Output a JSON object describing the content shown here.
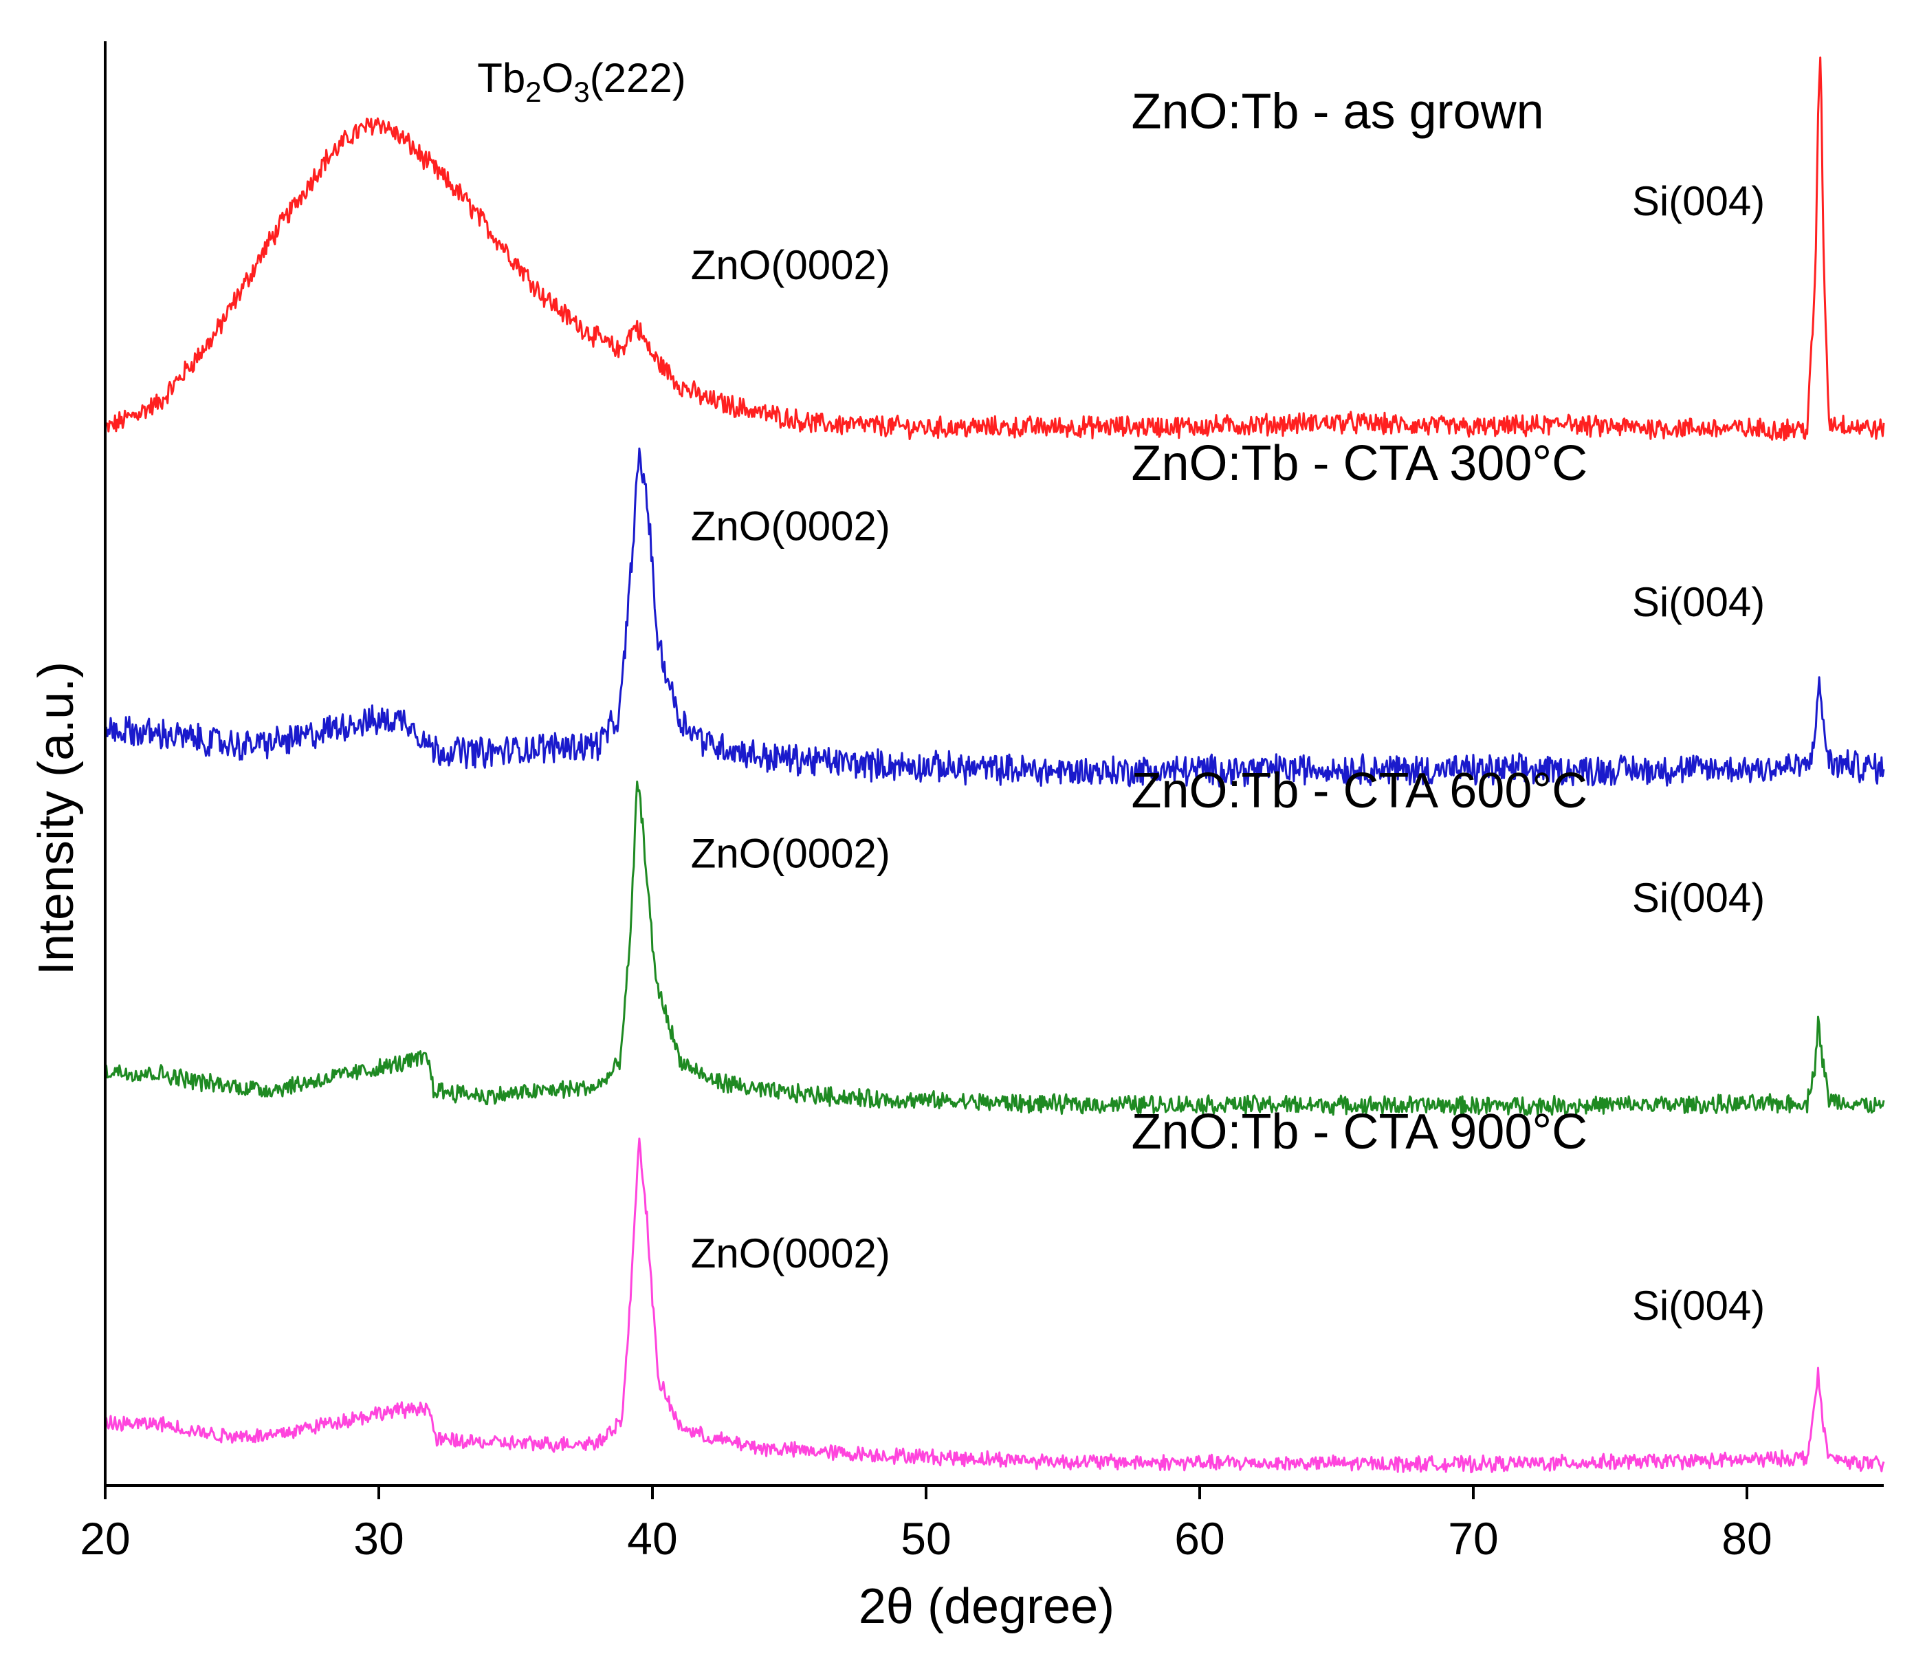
{
  "chart_data": {
    "type": "line",
    "xlabel": "2θ (degree)",
    "ylabel": "Intensity (a.u.)",
    "xlim": [
      20,
      85
    ],
    "xticks": [
      20,
      30,
      40,
      50,
      60,
      70,
      80
    ],
    "tick_labels": [
      "20",
      "30",
      "40",
      "50",
      "60",
      "70",
      "80"
    ],
    "ylim": [
      0,
      108
    ],
    "yticks_visible": false,
    "grid": false,
    "legend": "none (direct labels)",
    "series": [
      {
        "name": "ZnO:Tb - as grown",
        "color": "#ff2020",
        "noise": 0.7,
        "points": [
          [
            20,
            79
          ],
          [
            22,
            81
          ],
          [
            24,
            86
          ],
          [
            26,
            93
          ],
          [
            28,
            99
          ],
          [
            29,
            101
          ],
          [
            30,
            102
          ],
          [
            31,
            100.5
          ],
          [
            32,
            98.5
          ],
          [
            33,
            96.5
          ],
          [
            34,
            94
          ],
          [
            35,
            91.5
          ],
          [
            36,
            89
          ],
          [
            37,
            87.2
          ],
          [
            38,
            85.8
          ],
          [
            38.8,
            84.8
          ],
          [
            39.4,
            86.8
          ],
          [
            40,
            84.5
          ],
          [
            41,
            82.3
          ],
          [
            42,
            81.2
          ],
          [
            44,
            80.2
          ],
          [
            46,
            79.4
          ],
          [
            50,
            79.1
          ],
          [
            60,
            79.2
          ],
          [
            65,
            79.5
          ],
          [
            70,
            79.1
          ],
          [
            73.3,
            79.3
          ],
          [
            73.5,
            80.1
          ],
          [
            73.7,
            79.2
          ],
          [
            80,
            79
          ],
          [
            82.2,
            79
          ],
          [
            82.5,
            90
          ],
          [
            82.6,
            103
          ],
          [
            82.7,
            107
          ],
          [
            82.8,
            92
          ],
          [
            83,
            79.5
          ],
          [
            85,
            78.9
          ]
        ]
      },
      {
        "name": "ZnO:Tb - CTA 300°C",
        "color": "#1a1acc",
        "noise": 1.0,
        "points": [
          [
            20,
            56.5
          ],
          [
            22,
            56.2
          ],
          [
            25,
            55.3
          ],
          [
            27,
            55.8
          ],
          [
            29,
            57
          ],
          [
            31,
            57.3
          ],
          [
            32,
            55
          ],
          [
            34,
            54.8
          ],
          [
            36,
            55.2
          ],
          [
            38,
            55.4
          ],
          [
            38.8,
            57.5
          ],
          [
            39.2,
            68
          ],
          [
            39.5,
            77
          ],
          [
            39.8,
            74
          ],
          [
            40.2,
            63
          ],
          [
            41,
            57.3
          ],
          [
            42,
            55.5
          ],
          [
            44,
            54.5
          ],
          [
            48,
            53.9
          ],
          [
            55,
            53.4
          ],
          [
            60,
            53.5
          ],
          [
            65,
            53.6
          ],
          [
            70,
            53.5
          ],
          [
            75,
            53.5
          ],
          [
            80,
            53.6
          ],
          [
            82.3,
            53.8
          ],
          [
            82.5,
            57
          ],
          [
            82.65,
            59.5
          ],
          [
            82.8,
            57
          ],
          [
            83,
            54
          ],
          [
            85,
            53.6
          ]
        ]
      },
      {
        "name": "ZnO:Tb - CTA 600°C",
        "color": "#1e8a22",
        "noise": 0.6,
        "points": [
          [
            20,
            31
          ],
          [
            22,
            30.8
          ],
          [
            24,
            30
          ],
          [
            26,
            29.6
          ],
          [
            28,
            30.4
          ],
          [
            30,
            31.2
          ],
          [
            31.8,
            32
          ],
          [
            32,
            29.6
          ],
          [
            34,
            29.1
          ],
          [
            36,
            29.5
          ],
          [
            38,
            29.8
          ],
          [
            38.8,
            31.5
          ],
          [
            39.2,
            41
          ],
          [
            39.45,
            53
          ],
          [
            39.7,
            48
          ],
          [
            40.1,
            38
          ],
          [
            41,
            31.8
          ],
          [
            42,
            30.4
          ],
          [
            44,
            29.5
          ],
          [
            48,
            28.9
          ],
          [
            55,
            28.5
          ],
          [
            60,
            28.5
          ],
          [
            70,
            28.4
          ],
          [
            80,
            28.5
          ],
          [
            82.2,
            28.6
          ],
          [
            82.5,
            31.5
          ],
          [
            82.6,
            35
          ],
          [
            82.75,
            32
          ],
          [
            83,
            28.8
          ],
          [
            85,
            28.3
          ]
        ]
      },
      {
        "name": "ZnO:Tb - CTA 900°C",
        "color": "#ff44dd",
        "noise": 0.5,
        "points": [
          [
            20,
            4.6
          ],
          [
            22,
            4.6
          ],
          [
            24,
            3.8
          ],
          [
            26,
            3.7
          ],
          [
            28,
            4.6
          ],
          [
            30,
            5.4
          ],
          [
            31.8,
            5.9
          ],
          [
            32.1,
            3.4
          ],
          [
            34,
            3.2
          ],
          [
            36,
            3.1
          ],
          [
            38,
            3.2
          ],
          [
            38.9,
            5
          ],
          [
            39.2,
            14
          ],
          [
            39.5,
            26
          ],
          [
            39.8,
            20
          ],
          [
            40.2,
            8
          ],
          [
            41,
            4.4
          ],
          [
            42,
            3.6
          ],
          [
            44,
            2.8
          ],
          [
            48,
            2.3
          ],
          [
            55,
            1.8
          ],
          [
            60,
            1.7
          ],
          [
            70,
            1.6
          ],
          [
            80,
            1.9
          ],
          [
            82.2,
            2.1
          ],
          [
            82.45,
            5.5
          ],
          [
            82.6,
            8.5
          ],
          [
            82.75,
            5
          ],
          [
            83,
            2
          ],
          [
            85,
            1.5
          ]
        ]
      }
    ],
    "annotations": [
      {
        "text": "ZnO:Tb - as grown",
        "x": 57.5,
        "y": 101.5,
        "kind": "title"
      },
      {
        "text": "ZnO:Tb - CTA 300°C",
        "x": 57.5,
        "y": 75.2,
        "kind": "title"
      },
      {
        "text": "ZnO:Tb - CTA 600°C",
        "x": 57.5,
        "y": 50.7,
        "kind": "title"
      },
      {
        "text": "ZnO:Tb - CTA 900°C",
        "x": 57.5,
        "y": 25.2,
        "kind": "title"
      },
      {
        "text": "ZnO(0002)",
        "x": 41.4,
        "y": 90.2,
        "kind": "peak"
      },
      {
        "text": "ZnO(0002)",
        "x": 41.4,
        "y": 70.7,
        "kind": "peak"
      },
      {
        "text": "ZnO(0002)",
        "x": 41.4,
        "y": 46.2,
        "kind": "peak"
      },
      {
        "text": "ZnO(0002)",
        "x": 41.4,
        "y": 16.3,
        "kind": "peak"
      },
      {
        "text": "Si(004)",
        "x": 75.8,
        "y": 95.0,
        "kind": "peak"
      },
      {
        "text": "Si(004)",
        "x": 75.8,
        "y": 65.0,
        "kind": "peak"
      },
      {
        "text": "Si(004)",
        "x": 75.8,
        "y": 42.9,
        "kind": "peak"
      },
      {
        "text": "Si(004)",
        "x": 75.8,
        "y": 12.4,
        "kind": "peak"
      }
    ],
    "tb2o3_label": {
      "main": "Tb",
      "sub1": "2",
      "mid": "O",
      "sub2": "3",
      "suffix": "(222)",
      "x": 33.6,
      "y": 104.2
    }
  }
}
